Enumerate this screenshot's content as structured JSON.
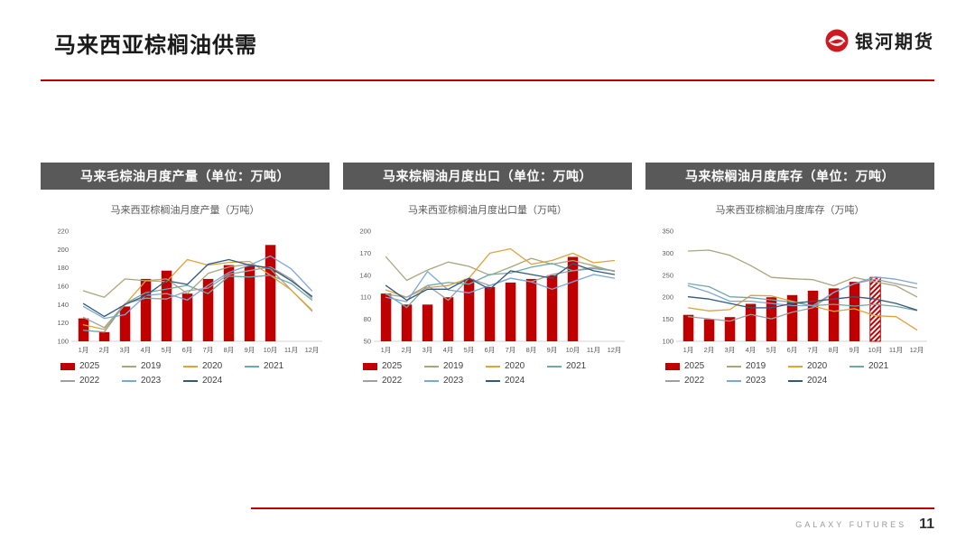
{
  "page": {
    "title": "马来西亚棕榈油供需",
    "logo_text": "银河期货",
    "footer_brand": "GALAXY FUTURES",
    "page_number": "11"
  },
  "colors": {
    "accent_red": "#c00000",
    "bar": "#c00000",
    "header_bar": "#595959",
    "series": {
      "2025": "#c00000",
      "2019": "#a9a57c",
      "2020": "#e0a33c",
      "2021": "#6fa8a8",
      "2022": "#a0a0a0",
      "2023": "#7ba7d7",
      "2024": "#33587a"
    }
  },
  "chart_data": [
    {
      "type": "bar-line",
      "panel_header": "马来毛棕油月度产量（单位：万吨）",
      "title": "马来西亚棕榈油月度产量（万吨）",
      "categories": [
        "1月",
        "2月",
        "3月",
        "4月",
        "5月",
        "6月",
        "7月",
        "8月",
        "9月",
        "10月",
        "11月",
        "12月"
      ],
      "ylim": [
        100,
        220
      ],
      "yticks": [
        100,
        120,
        140,
        160,
        180,
        200,
        220
      ],
      "bar_series": {
        "name": "2025",
        "values": [
          125,
          110,
          138,
          168,
          177,
          152,
          168,
          183,
          182,
          205,
          null,
          null
        ],
        "hatch_index": null
      },
      "line_series": [
        {
          "name": "2019",
          "values": [
            155,
            148,
            168,
            166,
            168,
            152,
            174,
            181,
            184,
            179,
            156,
            133
          ]
        },
        {
          "name": "2020",
          "values": [
            118,
            113,
            140,
            166,
            165,
            189,
            183,
            186,
            187,
            172,
            156,
            134
          ]
        },
        {
          "name": "2021",
          "values": [
            112,
            110,
            141,
            153,
            157,
            161,
            152,
            171,
            170,
            172,
            163,
            145
          ]
        },
        {
          "name": "2022",
          "values": [
            126,
            115,
            141,
            147,
            146,
            155,
            158,
            173,
            177,
            181,
            168,
            147
          ]
        },
        {
          "name": "2023",
          "values": [
            138,
            125,
            129,
            150,
            152,
            145,
            161,
            175,
            183,
            193,
            179,
            155
          ]
        },
        {
          "name": "2024",
          "values": [
            141,
            127,
            140,
            150,
            166,
            162,
            184,
            189,
            183,
            180,
            166,
            149
          ]
        }
      ],
      "legend_order": [
        "2025",
        "2019",
        "2020",
        "2021",
        "2022",
        "2023",
        "2024"
      ]
    },
    {
      "type": "bar-line",
      "panel_header": "马来棕榈油月度出口（单位：万吨）",
      "title": "马来西亚棕榈油月度出口量（万吨）",
      "categories": [
        "1月",
        "2月",
        "3月",
        "4月",
        "5月",
        "6月",
        "7月",
        "8月",
        "9月",
        "10月",
        "11月",
        "12月"
      ],
      "ylim": [
        50,
        200
      ],
      "yticks": [
        50,
        80,
        110,
        140,
        170,
        200
      ],
      "bar_series": {
        "name": "2025",
        "values": [
          115,
          100,
          100,
          110,
          135,
          124,
          130,
          135,
          140,
          165,
          null,
          null
        ],
        "hatch_index": null
      },
      "line_series": [
        {
          "name": "2019",
          "values": [
            165,
            133,
            147,
            158,
            152,
            140,
            151,
            163,
            155,
            160,
            153,
            145
          ]
        },
        {
          "name": "2020",
          "values": [
            120,
            110,
            123,
            126,
            136,
            170,
            176,
            155,
            160,
            170,
            157,
            160
          ]
        },
        {
          "name": "2021",
          "values": [
            115,
            96,
            126,
            130,
            128,
            141,
            143,
            151,
            156,
            146,
            149,
            146
          ]
        },
        {
          "name": "2022",
          "values": [
            114,
            110,
            126,
            106,
            136,
            126,
            136,
            131,
            141,
            146,
            151,
            146
          ]
        },
        {
          "name": "2023",
          "values": [
            110,
            104,
            145,
            120,
            116,
            126,
            136,
            131,
            121,
            131,
            141,
            136
          ]
        },
        {
          "name": "2024",
          "values": [
            126,
            106,
            121,
            121,
            136,
            121,
            146,
            141,
            136,
            156,
            146,
            141
          ]
        }
      ],
      "legend_order": [
        "2025",
        "2019",
        "2020",
        "2021",
        "2022",
        "2023",
        "2024"
      ]
    },
    {
      "type": "bar-line",
      "panel_header": "马来棕榈油月度库存（单位：万吨）",
      "title": "马来西亚棕榈油月度库存（万吨）",
      "categories": [
        "1月",
        "2月",
        "3月",
        "4月",
        "5月",
        "6月",
        "7月",
        "8月",
        "9月",
        "10月",
        "11月",
        "12月"
      ],
      "ylim": [
        100,
        350
      ],
      "yticks": [
        100,
        150,
        200,
        250,
        300,
        350
      ],
      "bar_series": {
        "name": "2025",
        "values": [
          160,
          150,
          155,
          185,
          200,
          205,
          215,
          220,
          235,
          245,
          null,
          null
        ],
        "hatch_index": 9
      },
      "line_series": [
        {
          "name": "2019",
          "values": [
            305,
            307,
            295,
            272,
            245,
            242,
            240,
            226,
            245,
            235,
            226,
            201
          ]
        },
        {
          "name": "2020",
          "values": [
            176,
            169,
            172,
            204,
            203,
            191,
            180,
            168,
            174,
            158,
            156,
            126
          ]
        },
        {
          "name": "2021",
          "values": [
            231,
            224,
            201,
            199,
            194,
            189,
            181,
            184,
            180,
            184,
            179,
            170
          ]
        },
        {
          "name": "2022",
          "values": [
            156,
            151,
            146,
            161,
            151,
            166,
            176,
            211,
            231,
            241,
            231,
            221
          ]
        },
        {
          "name": "2023",
          "values": [
            226,
            211,
            191,
            191,
            186,
            181,
            181,
            211,
            231,
            246,
            241,
            231
          ]
        },
        {
          "name": "2024",
          "values": [
            201,
            196,
            186,
            176,
            176,
            186,
            191,
            196,
            201,
            196,
            186,
            171
          ]
        }
      ],
      "legend_order": [
        "2025",
        "2019",
        "2020",
        "2021",
        "2022",
        "2023",
        "2024"
      ]
    }
  ]
}
